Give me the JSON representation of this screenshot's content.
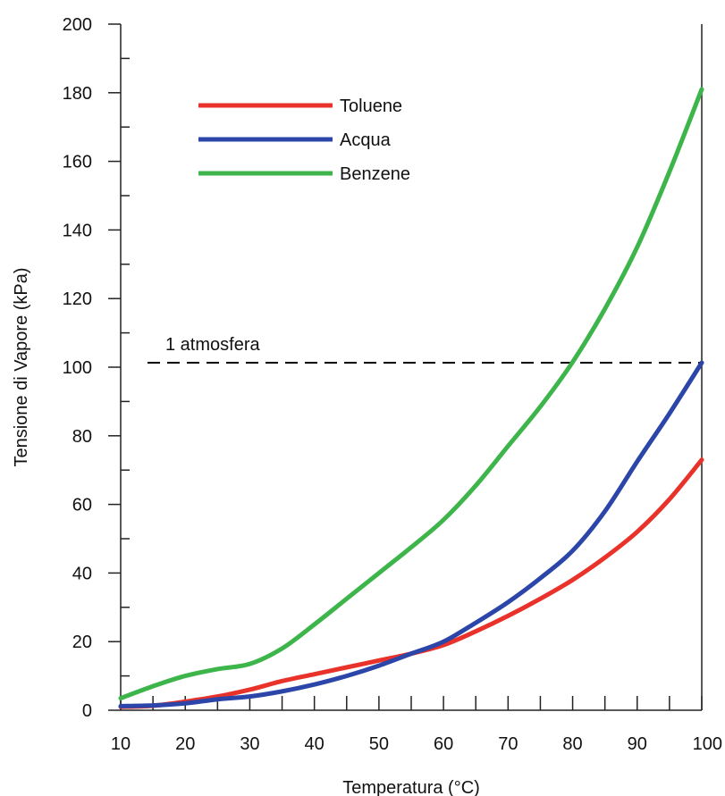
{
  "chart_data": {
    "type": "line",
    "xlabel": "Temperatura (°C)",
    "ylabel": "Tensione di Vapore (kPa)",
    "xlim": [
      10,
      100
    ],
    "ylim": [
      0,
      200
    ],
    "xticks": [
      10,
      20,
      30,
      40,
      50,
      60,
      70,
      80,
      90,
      100
    ],
    "yticks": [
      0,
      20,
      40,
      60,
      80,
      100,
      120,
      140,
      160,
      180,
      200
    ],
    "grid": false,
    "legend_position": "top-left",
    "series": [
      {
        "name": "Toluene",
        "color": "#e8322a",
        "x": [
          10,
          15,
          20,
          25,
          30,
          35,
          40,
          45,
          50,
          55,
          60,
          65,
          70,
          75,
          80,
          85,
          90,
          95,
          100
        ],
        "y": [
          1.0,
          1.3,
          2.5,
          4.0,
          6.0,
          8.5,
          10.5,
          12.5,
          14.5,
          16.5,
          19.0,
          23.0,
          27.5,
          32.5,
          38.0,
          44.5,
          52.0,
          61.5,
          73.0
        ]
      },
      {
        "name": "Acqua",
        "color": "#2b45a8",
        "x": [
          10,
          15,
          20,
          25,
          30,
          35,
          40,
          45,
          50,
          55,
          60,
          65,
          70,
          75,
          80,
          85,
          90,
          95,
          100
        ],
        "y": [
          1.2,
          1.4,
          2.0,
          3.2,
          4.0,
          5.5,
          7.5,
          10.0,
          13.0,
          16.5,
          20.0,
          25.5,
          31.5,
          38.5,
          46.5,
          58.0,
          72.5,
          86.5,
          101.3
        ]
      },
      {
        "name": "Benzene",
        "color": "#3db54a",
        "x": [
          10,
          15,
          20,
          25,
          30,
          35,
          40,
          45,
          50,
          55,
          60,
          65,
          70,
          75,
          80,
          85,
          90,
          95,
          100
        ],
        "y": [
          3.5,
          7.0,
          10.0,
          12.0,
          13.5,
          18.0,
          25.0,
          32.5,
          40.0,
          47.5,
          55.5,
          65.5,
          77.0,
          88.5,
          101.5,
          117.0,
          135.0,
          157.0,
          181.0
        ]
      }
    ],
    "reference_line": {
      "y": 101.3,
      "label": "1 atmosfera",
      "style": "dashed",
      "color": "#000000"
    }
  }
}
